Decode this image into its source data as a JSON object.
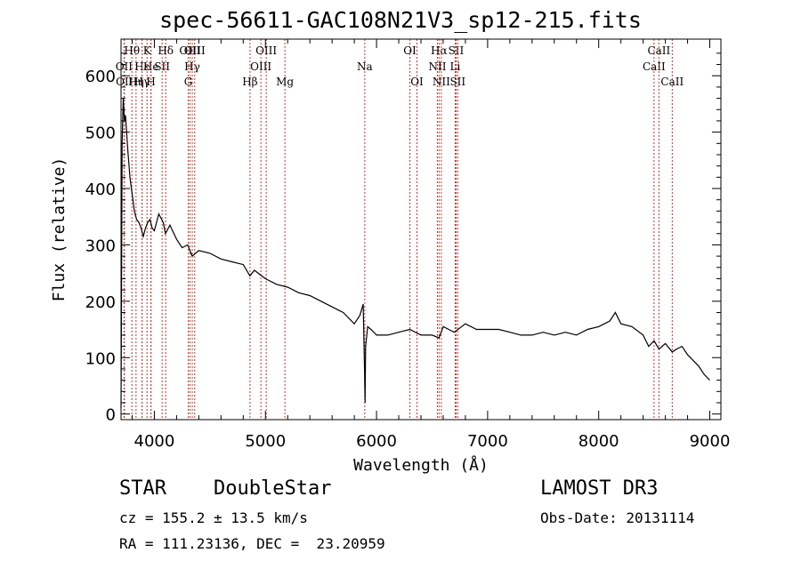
{
  "title": "spec-56611-GAC108N21V3_sp12-215.fits",
  "info": {
    "class": "STAR",
    "subclass": "DoubleStar",
    "survey": "LAMOST DR3",
    "cz": "cz = 155.2 ± 13.5 km/s",
    "obs_date": "Obs-Date: 20131114",
    "radec": "RA = 111.23136, DEC =  23.20959"
  },
  "chart_data": {
    "type": "line",
    "xlabel": "Wavelength (Å)",
    "ylabel": "Flux (relative)",
    "xlim": [
      3700,
      9100
    ],
    "ylim": [
      -10,
      665
    ],
    "xticks": [
      4000,
      5000,
      6000,
      7000,
      8000,
      9000
    ],
    "yticks": [
      0,
      100,
      200,
      300,
      400,
      500,
      600
    ],
    "series": [
      {
        "name": "flux",
        "x": [
          3700,
          3710,
          3720,
          3730,
          3740,
          3760,
          3780,
          3800,
          3820,
          3840,
          3860,
          3880,
          3900,
          3920,
          3940,
          3960,
          3980,
          4000,
          4040,
          4080,
          4100,
          4140,
          4200,
          4250,
          4300,
          4340,
          4400,
          4500,
          4600,
          4700,
          4800,
          4860,
          4900,
          5000,
          5100,
          5200,
          5300,
          5400,
          5500,
          5600,
          5700,
          5800,
          5850,
          5880,
          5893,
          5897,
          5902,
          5920,
          5950,
          6000,
          6100,
          6200,
          6300,
          6400,
          6500,
          6563,
          6600,
          6700,
          6800,
          6900,
          7000,
          7100,
          7200,
          7300,
          7400,
          7500,
          7600,
          7700,
          7800,
          7900,
          8000,
          8100,
          8150,
          8200,
          8300,
          8400,
          8450,
          8498,
          8542,
          8600,
          8662,
          8700,
          8750,
          8800,
          8850,
          8900,
          8950,
          9000
        ],
        "y": [
          10,
          480,
          560,
          520,
          530,
          470,
          420,
          390,
          360,
          345,
          340,
          330,
          315,
          330,
          340,
          345,
          330,
          325,
          355,
          340,
          320,
          335,
          310,
          295,
          300,
          280,
          290,
          285,
          275,
          270,
          265,
          245,
          255,
          240,
          230,
          225,
          215,
          210,
          200,
          190,
          180,
          160,
          175,
          195,
          70,
          20,
          120,
          155,
          150,
          140,
          140,
          145,
          150,
          140,
          140,
          135,
          155,
          145,
          160,
          150,
          150,
          150,
          145,
          140,
          140,
          145,
          140,
          145,
          140,
          150,
          155,
          165,
          180,
          160,
          155,
          140,
          120,
          130,
          115,
          125,
          110,
          115,
          120,
          105,
          95,
          85,
          70,
          60
        ]
      }
    ],
    "lines": [
      {
        "label": "OII",
        "x": 3727,
        "row": 1
      },
      {
        "label": "OII",
        "x": 3730,
        "row": 2
      },
      {
        "label": "Hθ",
        "x": 3798,
        "row": 0
      },
      {
        "label": "Hη",
        "x": 3835,
        "row": 2
      },
      {
        "label": "Hε",
        "x": 3889,
        "row": 1
      },
      {
        "label": "K",
        "x": 3934,
        "row": 0
      },
      {
        "label": "Hγ",
        "x": 3889,
        "row": 2
      },
      {
        "label": "He",
        "x": 3970,
        "row": 1
      },
      {
        "label": "H",
        "x": 3969,
        "row": 2
      },
      {
        "label": "SII",
        "x": 4070,
        "row": 1
      },
      {
        "label": "Hδ",
        "x": 4102,
        "row": 0
      },
      {
        "label": "OIII",
        "x": 4320,
        "row": 0
      },
      {
        "label": "Hγ",
        "x": 4341,
        "row": 1
      },
      {
        "label": "G",
        "x": 4305,
        "row": 2
      },
      {
        "label": "OIII",
        "x": 4363,
        "row": 0
      },
      {
        "label": "Hβ",
        "x": 4861,
        "row": 2
      },
      {
        "label": "OIII",
        "x": 4959,
        "row": 1
      },
      {
        "label": "OIII",
        "x": 5007,
        "row": 0
      },
      {
        "label": "Mg",
        "x": 5175,
        "row": 2
      },
      {
        "label": "Na",
        "x": 5894,
        "row": 1
      },
      {
        "label": "OI",
        "x": 6300,
        "row": 0
      },
      {
        "label": "OI",
        "x": 6364,
        "row": 2
      },
      {
        "label": "NII",
        "x": 6548,
        "row": 1
      },
      {
        "label": "Hα",
        "x": 6563,
        "row": 0
      },
      {
        "label": "NII",
        "x": 6583,
        "row": 2
      },
      {
        "label": "Li",
        "x": 6708,
        "row": 1
      },
      {
        "label": "SII",
        "x": 6716,
        "row": 0
      },
      {
        "label": "SII",
        "x": 6731,
        "row": 2
      },
      {
        "label": "CaII",
        "x": 8498,
        "row": 1
      },
      {
        "label": "CaII",
        "x": 8542,
        "row": 0
      },
      {
        "label": "CaII",
        "x": 8662,
        "row": 2
      }
    ]
  }
}
